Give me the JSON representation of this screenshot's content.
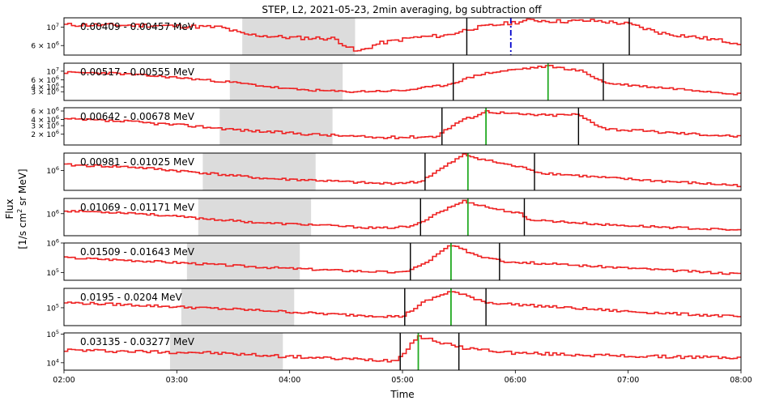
{
  "chart_data": {
    "type": "line",
    "title": "STEP, L2, 2021-05-23, 2min averaging, bg subtraction off",
    "xlabel": "Time",
    "ylabel_line1": "Flux",
    "ylabel_line2": "[1/s cm",
    "ylabel_sup": "2",
    "ylabel_line2b": " sr MeV]",
    "x_unit": "hours since 00:00",
    "xlim": [
      2.0,
      8.0
    ],
    "xtick_values": [
      2,
      3,
      4,
      5,
      6,
      7,
      8
    ],
    "xtick_labels": [
      "02:00",
      "03:00",
      "04:00",
      "05:00",
      "06:00",
      "07:00",
      "08:00"
    ],
    "line_color": "#ee2222",
    "shade_color": "#dcdcdc",
    "panels": [
      {
        "label": "0.00409 - 0.00457 MeV",
        "ylog": true,
        "ylim": [
          4600000.0,
          13000000.0
        ],
        "ytick_values": [
          10000000.0,
          6000000.0
        ],
        "ytick_labels": [
          {
            "m": "10",
            "e": "7"
          },
          {
            "m": "6 × 10",
            "e": "6"
          }
        ],
        "shade": [
          3.58,
          4.58
        ],
        "black_lines": [
          5.57,
          7.01
        ],
        "marker": {
          "x": 5.96,
          "color": "#0000cc",
          "style": "dashdot"
        },
        "series": {
          "name": "",
          "knots": [
            [
              2.0,
              10700000.0
            ],
            [
              2.8,
              10500000.0
            ],
            [
              3.4,
              10000000.0
            ],
            [
              3.6,
              8200000.0
            ],
            [
              4.0,
              7500000.0
            ],
            [
              4.4,
              7300000.0
            ],
            [
              4.6,
              5000000.0
            ],
            [
              4.8,
              6400000.0
            ],
            [
              5.1,
              7500000.0
            ],
            [
              5.4,
              8000000.0
            ],
            [
              5.6,
              9600000.0
            ],
            [
              5.9,
              11000000.0
            ],
            [
              6.15,
              12200000.0
            ],
            [
              6.4,
              11800000.0
            ],
            [
              6.7,
              12000000.0
            ],
            [
              7.0,
              11000000.0
            ],
            [
              7.3,
              8500000.0
            ],
            [
              7.7,
              7300000.0
            ],
            [
              8.0,
              6400000.0
            ]
          ],
          "noise": 0.05,
          "seed": 11
        }
      },
      {
        "label": "0.00517 - 0.00555 MeV",
        "ylog": true,
        "ylim": [
          1800000.0,
          16000000.0
        ],
        "ytick_values": [
          10000000.0,
          6000000.0,
          4000000.0,
          3000000.0
        ],
        "ytick_labels": [
          {
            "m": "10",
            "e": "7"
          },
          {
            "m": "6 × 10",
            "e": "6"
          },
          {
            "m": "4 × 10",
            "e": "6"
          },
          {
            "m": "3 × 10",
            "e": "6"
          }
        ],
        "shade": [
          3.47,
          4.47
        ],
        "black_lines": [
          5.45,
          6.78
        ],
        "marker": {
          "x": 6.29,
          "color": "#22aa22",
          "style": "solid"
        },
        "series": {
          "name": "",
          "knots": [
            [
              2.0,
              9200000.0
            ],
            [
              2.4,
              9000000.0
            ],
            [
              3.0,
              6900000.0
            ],
            [
              3.5,
              5200000.0
            ],
            [
              4.0,
              3500000.0
            ],
            [
              4.5,
              3000000.0
            ],
            [
              5.0,
              3200000.0
            ],
            [
              5.4,
              4500000.0
            ],
            [
              5.7,
              8500000.0
            ],
            [
              6.0,
              11000000.0
            ],
            [
              6.3,
              13500000.0
            ],
            [
              6.6,
              10000000.0
            ],
            [
              6.8,
              5000000.0
            ],
            [
              7.2,
              4000000.0
            ],
            [
              7.6,
              3300000.0
            ],
            [
              8.0,
              2600000.0
            ]
          ],
          "noise": 0.06,
          "seed": 23
        }
      },
      {
        "label": "0.00642 - 0.00678 MeV",
        "ylog": true,
        "ylim": [
          1200000.0,
          7000000.0
        ],
        "ytick_values": [
          6000000.0,
          4000000.0,
          3000000.0,
          2000000.0
        ],
        "ytick_labels": [
          {
            "m": "6 × 10",
            "e": "6"
          },
          {
            "m": "4 × 10",
            "e": "6"
          },
          {
            "m": "3 × 10",
            "e": "6"
          },
          {
            "m": "2 × 10",
            "e": "6"
          }
        ],
        "shade": [
          3.38,
          4.38
        ],
        "black_lines": [
          5.35,
          6.56
        ],
        "marker": {
          "x": 5.74,
          "color": "#22aa22",
          "style": "solid"
        },
        "series": {
          "name": "",
          "knots": [
            [
              2.0,
              4100000.0
            ],
            [
              2.6,
              3600000.0
            ],
            [
              3.2,
              2900000.0
            ],
            [
              3.6,
              2400000.0
            ],
            [
              4.2,
              2000000.0
            ],
            [
              4.8,
              1700000.0
            ],
            [
              5.3,
              1800000.0
            ],
            [
              5.5,
              3600000.0
            ],
            [
              5.75,
              5900000.0
            ],
            [
              6.0,
              5200000.0
            ],
            [
              6.3,
              4900000.0
            ],
            [
              6.55,
              5100000.0
            ],
            [
              6.8,
              2600000.0
            ],
            [
              7.3,
              2200000.0
            ],
            [
              8.0,
              1800000.0
            ]
          ],
          "noise": 0.06,
          "seed": 37
        }
      },
      {
        "label": "0.00981 - 0.01025 MeV",
        "ylog": true,
        "ylim": [
          350000.0,
          2500000.0
        ],
        "ytick_values": [
          1000000.0
        ],
        "ytick_labels": [
          {
            "m": "10",
            "e": "6"
          }
        ],
        "shade": [
          3.23,
          4.23
        ],
        "black_lines": [
          5.2,
          6.17
        ],
        "marker": {
          "x": 5.58,
          "color": "#22aa22",
          "style": "solid"
        },
        "series": {
          "name": "",
          "knots": [
            [
              2.0,
              1350000.0
            ],
            [
              2.6,
              1200000.0
            ],
            [
              3.2,
              900000.0
            ],
            [
              3.8,
              650000.0
            ],
            [
              4.2,
              600000.0
            ],
            [
              4.8,
              500000.0
            ],
            [
              5.15,
              540000.0
            ],
            [
              5.35,
              1100000.0
            ],
            [
              5.55,
              2300000.0
            ],
            [
              5.8,
              1600000.0
            ],
            [
              6.15,
              1050000.0
            ],
            [
              6.2,
              900000.0
            ],
            [
              6.8,
              680000.0
            ],
            [
              7.4,
              550000.0
            ],
            [
              8.0,
              450000.0
            ]
          ],
          "noise": 0.06,
          "seed": 41
        }
      },
      {
        "label": "0.01069 - 0.01171 MeV",
        "ylog": true,
        "ylim": [
          250000.0,
          2600000.0
        ],
        "ytick_values": [
          1000000.0
        ],
        "ytick_labels": [
          {
            "m": "10",
            "e": "6"
          }
        ],
        "shade": [
          3.19,
          4.19
        ],
        "black_lines": [
          5.16,
          6.08
        ],
        "marker": {
          "x": 5.58,
          "color": "#22aa22",
          "style": "solid"
        },
        "series": {
          "name": "",
          "knots": [
            [
              2.0,
              1200000.0
            ],
            [
              2.6,
              1050000.0
            ],
            [
              3.2,
              750000.0
            ],
            [
              3.8,
              550000.0
            ],
            [
              4.2,
              500000.0
            ],
            [
              4.8,
              400000.0
            ],
            [
              5.1,
              450000.0
            ],
            [
              5.3,
              1000000.0
            ],
            [
              5.55,
              2200000.0
            ],
            [
              5.8,
              1400000.0
            ],
            [
              6.05,
              1000000.0
            ],
            [
              6.1,
              700000.0
            ],
            [
              6.8,
              500000.0
            ],
            [
              7.4,
              420000.0
            ],
            [
              8.0,
              350000.0
            ]
          ],
          "noise": 0.06,
          "seed": 53
        }
      },
      {
        "label": "0.01509 - 0.01643 MeV",
        "ylog": true,
        "ylim": [
          55000.0,
          1000000.0
        ],
        "ytick_values": [
          1000000.0,
          100000.0
        ],
        "ytick_labels": [
          {
            "m": "10",
            "e": "6"
          },
          {
            "m": "10",
            "e": "5"
          }
        ],
        "shade": [
          3.09,
          4.09
        ],
        "black_lines": [
          5.07,
          5.86
        ],
        "marker": {
          "x": 5.43,
          "color": "#22aa22",
          "style": "solid"
        },
        "series": {
          "name": "",
          "knots": [
            [
              2.0,
              320000.0
            ],
            [
              2.6,
              260000.0
            ],
            [
              3.2,
              200000.0
            ],
            [
              3.8,
              150000.0
            ],
            [
              4.4,
              120000.0
            ],
            [
              5.0,
              100000.0
            ],
            [
              5.2,
              200000.0
            ],
            [
              5.43,
              850000.0
            ],
            [
              5.7,
              350000.0
            ],
            [
              5.85,
              300000.0
            ],
            [
              5.9,
              240000.0
            ],
            [
              6.5,
              180000.0
            ],
            [
              7.2,
              130000.0
            ],
            [
              8.0,
              90000.0
            ]
          ],
          "noise": 0.08,
          "seed": 67
        }
      },
      {
        "label": "0.0195 - 0.0204 MeV",
        "ylog": true,
        "ylim": [
          25000.0,
          450000.0
        ],
        "ytick_values": [
          100000.0
        ],
        "ytick_labels": [
          {
            "m": "10",
            "e": "5"
          }
        ],
        "shade": [
          3.04,
          4.04
        ],
        "black_lines": [
          5.02,
          5.74
        ],
        "marker": {
          "x": 5.43,
          "color": "#22aa22",
          "style": "solid"
        },
        "series": {
          "name": "",
          "knots": [
            [
              2.0,
              150000.0
            ],
            [
              2.6,
              125000.0
            ],
            [
              3.2,
              100000.0
            ],
            [
              3.8,
              80000.0
            ],
            [
              4.4,
              60000.0
            ],
            [
              5.0,
              50000.0
            ],
            [
              5.2,
              160000.0
            ],
            [
              5.43,
              360000.0
            ],
            [
              5.7,
              180000.0
            ],
            [
              5.75,
              150000.0
            ],
            [
              6.3,
              110000.0
            ],
            [
              7.0,
              75000.0
            ],
            [
              8.0,
              50000.0
            ]
          ],
          "noise": 0.09,
          "seed": 79
        }
      },
      {
        "label": "0.03135 - 0.03277 MeV",
        "ylog": true,
        "ylim": [
          5500.0,
          110000.0
        ],
        "ytick_values": [
          100000.0,
          10000.0
        ],
        "ytick_labels": [
          {
            "m": "10",
            "e": "5"
          },
          {
            "m": "10",
            "e": "4"
          }
        ],
        "shade": [
          2.94,
          3.94
        ],
        "black_lines": [
          4.98,
          5.5
        ],
        "marker": {
          "x": 5.14,
          "color": "#22aa22",
          "style": "solid"
        },
        "series": {
          "name": "",
          "knots": [
            [
              2.0,
              28000.0
            ],
            [
              2.6,
              25000.0
            ],
            [
              3.2,
              23000.0
            ],
            [
              3.8,
              18000.0
            ],
            [
              4.4,
              14000.0
            ],
            [
              4.95,
              12000.0
            ],
            [
              5.14,
              85000.0
            ],
            [
              5.4,
              45000.0
            ],
            [
              5.5,
              35000.0
            ],
            [
              6.0,
              22000.0
            ],
            [
              7.0,
              17000.0
            ],
            [
              8.0,
              15000.0
            ]
          ],
          "noise": 0.12,
          "seed": 97
        }
      }
    ]
  }
}
